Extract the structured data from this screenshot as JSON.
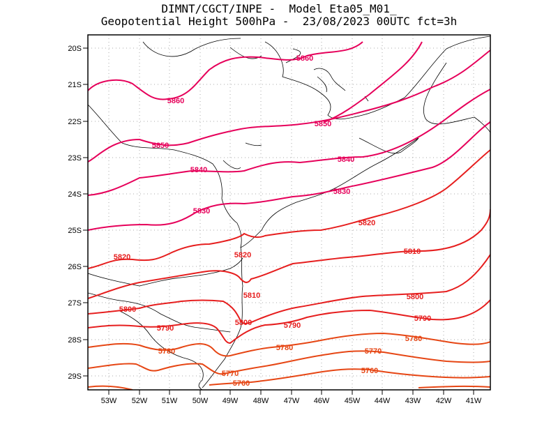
{
  "title": {
    "line1": "DIMNT/CGCT/INPE -  Model Eta05_M01_",
    "line2": "Geopotential Height 500hPa -  23/08/2023 00UTC fct=3h"
  },
  "axes": {
    "x_ticks": [
      "53W",
      "52W",
      "51W",
      "50W",
      "49W",
      "48W",
      "47W",
      "46W",
      "45W",
      "44W",
      "43W",
      "42W",
      "41W"
    ],
    "y_ticks": [
      "20S",
      "21S",
      "22S",
      "23S",
      "24S",
      "25S",
      "26S",
      "27S",
      "28S",
      "29S"
    ]
  },
  "contour_labels": [
    {
      "text": "5860"
    },
    {
      "text": "5860"
    },
    {
      "text": "5850"
    },
    {
      "text": "5850"
    },
    {
      "text": "5840"
    },
    {
      "text": "5840"
    },
    {
      "text": "5830"
    },
    {
      "text": "5830"
    },
    {
      "text": "5820"
    },
    {
      "text": "5820"
    },
    {
      "text": "5820"
    },
    {
      "text": "5810"
    },
    {
      "text": "5810"
    },
    {
      "text": "5800"
    },
    {
      "text": "5800"
    },
    {
      "text": "5800"
    },
    {
      "text": "5790"
    },
    {
      "text": "5790"
    },
    {
      "text": "5790"
    },
    {
      "text": "5780"
    },
    {
      "text": "5780"
    },
    {
      "text": "5780"
    },
    {
      "text": "5770"
    },
    {
      "text": "5770"
    },
    {
      "text": "5760"
    },
    {
      "text": "5760"
    }
  ],
  "colors": {
    "high_contours": "#e6005a",
    "mid_contours": "#e61e1e",
    "low_contours": "#e64614",
    "grid": "#aaaaaa",
    "coastline": "#000000"
  }
}
